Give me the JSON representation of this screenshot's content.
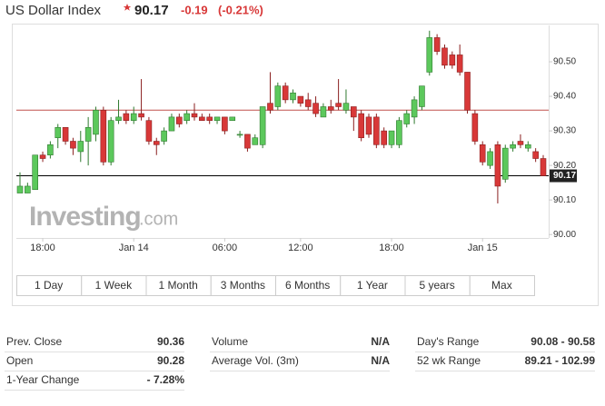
{
  "header": {
    "title": "US Dollar Index",
    "price": "90.17",
    "change": "-0.19",
    "change_pct": "(-0.21%)"
  },
  "chart_data": {
    "type": "candlestick",
    "categories": [
      null,
      null,
      null,
      "18:00",
      null,
      null,
      null,
      null,
      null,
      null,
      null,
      null,
      null,
      null,
      null,
      "Jan 14",
      null,
      null,
      null,
      null,
      null,
      null,
      null,
      null,
      null,
      null,
      null,
      "06:00",
      null,
      null,
      null,
      null,
      null,
      null,
      null,
      null,
      null,
      "12:00",
      null,
      null,
      null,
      null,
      null,
      null,
      null,
      null,
      null,
      null,
      null,
      "18:00",
      null,
      null,
      null,
      null,
      null,
      null,
      null,
      null,
      null,
      null,
      null,
      "Jan 15",
      null,
      null,
      null,
      null,
      null,
      null,
      null,
      null
    ],
    "open": [
      90.12,
      90.12,
      90.13,
      90.23,
      90.23,
      90.28,
      90.31,
      90.27,
      90.24,
      90.27,
      90.29,
      90.36,
      90.21,
      90.33,
      90.35,
      90.33,
      90.35,
      90.33,
      90.27,
      90.27,
      90.3,
      90.34,
      90.33,
      90.35,
      90.34,
      90.34,
      90.33,
      90.34,
      90.33,
      90.29,
      90.29,
      90.26,
      90.26,
      90.38,
      90.37,
      90.43,
      90.39,
      90.4,
      90.39,
      90.38,
      90.34,
      90.37,
      90.38,
      90.36,
      90.37,
      90.35,
      90.34,
      90.34,
      90.3,
      90.26,
      90.26,
      90.32,
      90.34,
      90.37,
      90.47,
      90.57,
      90.54,
      90.52,
      90.52,
      90.47,
      90.35,
      90.26,
      90.2,
      90.26,
      90.16,
      90.25,
      90.27,
      90.25,
      90.24,
      90.22
    ],
    "high": [
      90.18,
      90.15,
      90.23,
      90.24,
      90.27,
      90.32,
      90.31,
      90.28,
      90.3,
      90.34,
      90.37,
      90.37,
      90.34,
      90.39,
      90.36,
      90.37,
      90.45,
      90.34,
      90.28,
      90.31,
      90.35,
      90.35,
      90.36,
      90.38,
      90.35,
      90.35,
      90.34,
      90.34,
      90.34,
      90.3,
      90.29,
      90.29,
      90.37,
      90.47,
      90.44,
      90.44,
      90.42,
      90.4,
      90.41,
      90.4,
      90.38,
      90.39,
      90.45,
      90.42,
      90.37,
      90.36,
      90.35,
      90.35,
      90.31,
      90.3,
      90.34,
      90.36,
      90.4,
      90.43,
      90.59,
      90.58,
      90.55,
      90.53,
      90.55,
      90.47,
      90.36,
      90.27,
      90.25,
      90.27,
      90.26,
      90.27,
      90.29,
      90.27,
      90.25,
      90.23
    ],
    "low": [
      90.12,
      90.12,
      90.13,
      90.21,
      90.22,
      90.25,
      90.26,
      90.23,
      90.21,
      90.2,
      90.27,
      90.2,
      90.2,
      90.32,
      90.32,
      90.32,
      90.33,
      90.26,
      90.23,
      90.26,
      90.3,
      90.31,
      90.32,
      90.33,
      90.33,
      90.32,
      90.32,
      90.29,
      90.33,
      90.28,
      90.24,
      90.26,
      90.25,
      90.35,
      90.36,
      90.38,
      90.38,
      90.37,
      90.36,
      90.34,
      90.34,
      90.35,
      90.36,
      90.35,
      90.3,
      90.27,
      90.28,
      90.25,
      90.25,
      90.25,
      90.25,
      90.31,
      90.32,
      90.36,
      90.46,
      90.52,
      90.48,
      90.48,
      90.46,
      90.35,
      90.26,
      90.2,
      90.19,
      90.09,
      90.15,
      90.24,
      90.25,
      90.24,
      90.21,
      90.17
    ],
    "close": [
      90.14,
      90.14,
      90.23,
      90.22,
      90.26,
      90.31,
      90.27,
      90.25,
      90.27,
      90.31,
      90.36,
      90.21,
      90.33,
      90.34,
      90.33,
      90.35,
      90.34,
      90.27,
      90.26,
      90.3,
      90.34,
      90.32,
      90.35,
      90.34,
      90.33,
      90.33,
      90.34,
      90.3,
      90.34,
      90.29,
      90.25,
      90.28,
      90.37,
      90.36,
      90.43,
      90.39,
      90.41,
      90.38,
      90.37,
      90.35,
      90.37,
      90.36,
      90.37,
      90.38,
      90.34,
      90.28,
      90.29,
      90.26,
      90.26,
      90.3,
      90.33,
      90.35,
      90.39,
      90.43,
      90.57,
      90.53,
      90.49,
      90.49,
      90.47,
      90.36,
      90.27,
      90.21,
      90.24,
      90.14,
      90.25,
      90.26,
      90.26,
      90.26,
      90.22,
      90.17
    ],
    "up_color": "#5cc85c",
    "down_color": "#d83838",
    "ylim": [
      89.99,
      90.6
    ],
    "yticks": [
      {
        "value": 90.0,
        "label": "90.00"
      },
      {
        "value": 90.1,
        "label": "90.10"
      },
      {
        "value": 90.2,
        "label": "90.20"
      },
      {
        "value": 90.3,
        "label": "90.30"
      },
      {
        "value": 90.4,
        "label": "90.40"
      },
      {
        "value": 90.5,
        "label": "90.50"
      }
    ],
    "reference_lines": [
      {
        "value": 90.36,
        "color": "#c0504d"
      },
      {
        "value": 90.17,
        "color": "#000000"
      }
    ]
  },
  "watermark": [
    "Investing",
    ".com"
  ],
  "range_buttons": [
    "1 Day",
    "1 Week",
    "1 Month",
    "3 Months",
    "6 Months",
    "1 Year",
    "5 years",
    "Max"
  ],
  "stats": [
    [
      {
        "label": "Prev. Close",
        "value": "90.36"
      },
      {
        "label": "Volume",
        "value": "N/A"
      },
      {
        "label": "Day's Range",
        "value": "90.08 - 90.58"
      }
    ],
    [
      {
        "label": "Open",
        "value": "90.28"
      },
      {
        "label": "Average Vol. (3m)",
        "value": "N/A"
      },
      {
        "label": "52 wk Range",
        "value": "89.21 - 102.99"
      }
    ],
    [
      {
        "label": "1-Year Change",
        "value": "- 7.28%"
      }
    ]
  ]
}
